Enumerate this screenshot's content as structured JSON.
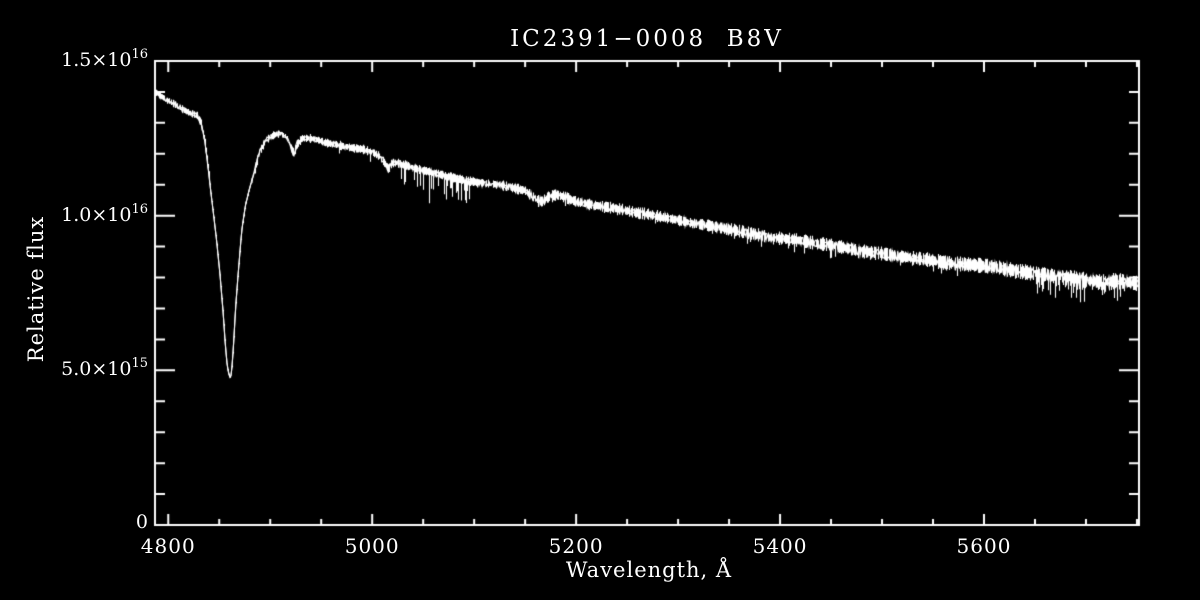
{
  "window": {
    "background": "#000000",
    "foreground": "#ffffff"
  },
  "chart_data": {
    "type": "line",
    "title": "IC2391−0008  B8V",
    "xlabel": "Wavelength, Å",
    "ylabel": "Relative flux",
    "grid": "off",
    "legend": "none",
    "x_range": [
      4787,
      5752
    ],
    "y_range": [
      0,
      1.5e+16
    ],
    "flux_unit": 1000000000000000.0,
    "x_major_ticks": [
      4800,
      5000,
      5200,
      5400,
      5600
    ],
    "x_tick_labels": [
      "4800",
      "5000",
      "5200",
      "5400",
      "5600"
    ],
    "x_minor_step": 50,
    "y_major_ticks_1e15": [
      0,
      5,
      10,
      15
    ],
    "y_minor_step_1e15": 1,
    "y_tick_labels": [
      {
        "value_1e15": 0,
        "base": "0",
        "sup": ""
      },
      {
        "value_1e15": 5,
        "base": "5.0×10",
        "sup": "15"
      },
      {
        "value_1e15": 10,
        "base": "1.0×10",
        "sup": "16"
      },
      {
        "value_1e15": 15,
        "base": "1.5×10",
        "sup": "16"
      }
    ],
    "line_color": "#ffffff",
    "features": [
      {
        "name": "H-beta absorption line",
        "wavelength": 4861,
        "core_flux_1e15": 4.75
      },
      {
        "name": "He I absorption line",
        "wavelength": 4922,
        "core_flux_1e15": 12.0
      },
      {
        "name": "He I absorption line",
        "wavelength": 5016,
        "core_flux_1e15": 11.5
      }
    ],
    "series": [
      {
        "name": "IC2391-0008 spectrum",
        "points_1e15": [
          [
            4787,
            14.0
          ],
          [
            4793,
            13.85
          ],
          [
            4800,
            13.72
          ],
          [
            4807,
            13.58
          ],
          [
            4815,
            13.42
          ],
          [
            4822,
            13.3
          ],
          [
            4828,
            13.25
          ],
          [
            4832,
            13.0
          ],
          [
            4836,
            12.4
          ],
          [
            4839,
            11.6
          ],
          [
            4842,
            10.7
          ],
          [
            4845,
            9.9
          ],
          [
            4848,
            9.0
          ],
          [
            4851,
            8.0
          ],
          [
            4854,
            6.8
          ],
          [
            4856,
            5.8
          ],
          [
            4858,
            5.1
          ],
          [
            4860,
            4.8
          ],
          [
            4861,
            4.75
          ],
          [
            4862,
            4.9
          ],
          [
            4864,
            5.8
          ],
          [
            4866,
            7.0
          ],
          [
            4869,
            8.3
          ],
          [
            4872,
            9.5
          ],
          [
            4876,
            10.4
          ],
          [
            4880,
            10.9
          ],
          [
            4885,
            11.5
          ],
          [
            4890,
            12.1
          ],
          [
            4896,
            12.45
          ],
          [
            4903,
            12.6
          ],
          [
            4910,
            12.65
          ],
          [
            4916,
            12.55
          ],
          [
            4920,
            12.25
          ],
          [
            4923,
            12.0
          ],
          [
            4926,
            12.3
          ],
          [
            4931,
            12.5
          ],
          [
            4938,
            12.5
          ],
          [
            4946,
            12.45
          ],
          [
            4955,
            12.35
          ],
          [
            4965,
            12.3
          ],
          [
            4978,
            12.2
          ],
          [
            4990,
            12.15
          ],
          [
            5000,
            12.05
          ],
          [
            5008,
            11.9
          ],
          [
            5013,
            11.65
          ],
          [
            5016,
            11.5
          ],
          [
            5019,
            11.7
          ],
          [
            5025,
            11.7
          ],
          [
            5035,
            11.6
          ],
          [
            5045,
            11.5
          ],
          [
            5058,
            11.4
          ],
          [
            5070,
            11.3
          ],
          [
            5082,
            11.2
          ],
          [
            5095,
            11.12
          ],
          [
            5110,
            11.05
          ],
          [
            5125,
            11.0
          ],
          [
            5140,
            10.88
          ],
          [
            5150,
            10.8
          ],
          [
            5160,
            10.55
          ],
          [
            5166,
            10.45
          ],
          [
            5172,
            10.6
          ],
          [
            5180,
            10.68
          ],
          [
            5188,
            10.6
          ],
          [
            5200,
            10.45
          ],
          [
            5215,
            10.35
          ],
          [
            5230,
            10.28
          ],
          [
            5245,
            10.2
          ],
          [
            5258,
            10.1
          ],
          [
            5270,
            10.05
          ],
          [
            5285,
            9.95
          ],
          [
            5300,
            9.85
          ],
          [
            5315,
            9.75
          ],
          [
            5330,
            9.68
          ],
          [
            5345,
            9.58
          ],
          [
            5360,
            9.5
          ],
          [
            5375,
            9.4
          ],
          [
            5390,
            9.3
          ],
          [
            5405,
            9.25
          ],
          [
            5420,
            9.2
          ],
          [
            5435,
            9.1
          ],
          [
            5450,
            9.05
          ],
          [
            5465,
            8.95
          ],
          [
            5480,
            8.85
          ],
          [
            5495,
            8.8
          ],
          [
            5510,
            8.72
          ],
          [
            5525,
            8.65
          ],
          [
            5540,
            8.6
          ],
          [
            5555,
            8.52
          ],
          [
            5570,
            8.45
          ],
          [
            5585,
            8.42
          ],
          [
            5600,
            8.38
          ],
          [
            5615,
            8.32
          ],
          [
            5630,
            8.22
          ],
          [
            5645,
            8.15
          ],
          [
            5660,
            8.1
          ],
          [
            5675,
            8.05
          ],
          [
            5690,
            7.95
          ],
          [
            5705,
            7.9
          ],
          [
            5718,
            7.85
          ],
          [
            5730,
            7.9
          ],
          [
            5740,
            7.85
          ],
          [
            5752,
            7.8
          ]
        ]
      }
    ],
    "noise": {
      "seed": 7,
      "base_amp_1e15": [
        0.08,
        0.17
      ],
      "quiet_region": {
        "from": 4840,
        "to": 4882,
        "factor": 0.25
      },
      "spike_zones": [
        {
          "from": 4787,
          "to": 4830,
          "max_depth_1e15": 0.25,
          "density": 0.12
        },
        {
          "from": 4950,
          "to": 5012,
          "max_depth_1e15": 0.4,
          "density": 0.15
        },
        {
          "from": 5028,
          "to": 5095,
          "max_depth_1e15": 1.25,
          "density": 0.38
        },
        {
          "from": 5100,
          "to": 5330,
          "max_depth_1e15": 0.35,
          "density": 0.1
        },
        {
          "from": 5330,
          "to": 5480,
          "max_depth_1e15": 0.55,
          "density": 0.16
        },
        {
          "from": 5480,
          "to": 5648,
          "max_depth_1e15": 0.5,
          "density": 0.14
        },
        {
          "from": 5648,
          "to": 5738,
          "max_depth_1e15": 1.0,
          "density": 0.42
        }
      ]
    }
  }
}
